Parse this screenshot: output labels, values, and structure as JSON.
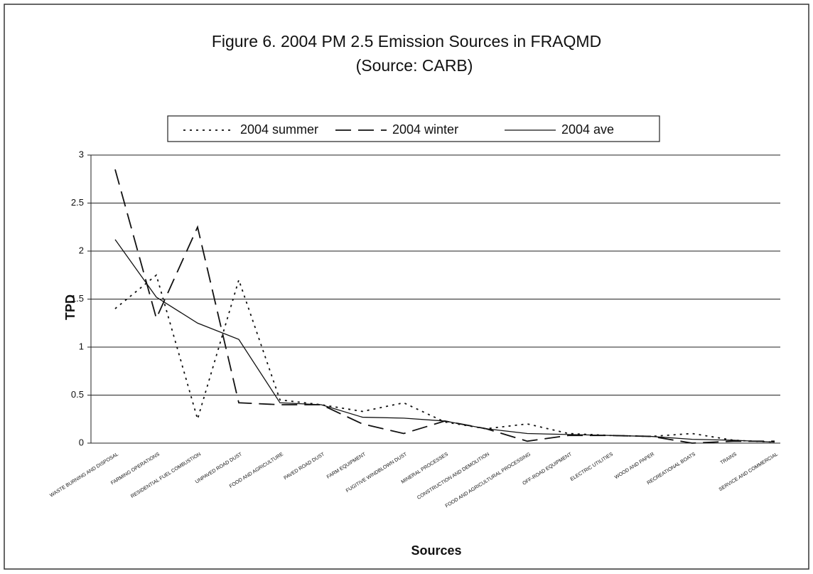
{
  "chart_data": {
    "type": "line",
    "title": "Figure 6.  2004 PM 2.5 Emission Sources in FRAQMD",
    "subtitle": "(Source: CARB)",
    "x_label": "Sources",
    "y_label": "TPD",
    "categories": [
      "WASTE BURNING AND DISPOSAL",
      "FARMING OPERATIONS",
      "RESIDENTIAL FUEL COMBUSTION",
      "UNPAVED ROAD DUST",
      "FOOD AND AGRICULTURE",
      "PAVED ROAD DUST",
      "FARM EQUIPMENT",
      "FUGITIVE WINDBLOWN DUST",
      "MINERAL PROCESSES",
      "CONSTRUCTION AND DEMOLITION",
      "FOOD AND AGRICULTURAL PROCESSING",
      "OFF-ROAD EQUIPMENT",
      "ELECTRIC UTILITIES",
      "WOOD AND PAPER",
      "RECREATIONAL BOATS",
      "TRAINS",
      "SERVICE AND COMMERCIAL"
    ],
    "series": [
      {
        "name": "2004 summer",
        "color": "#111111",
        "dash": "dotted",
        "values": [
          1.4,
          1.75,
          0.25,
          1.7,
          0.45,
          0.4,
          0.33,
          0.42,
          0.22,
          0.15,
          0.2,
          0.1,
          0.08,
          0.07,
          0.1,
          0.03,
          0.01
        ]
      },
      {
        "name": "2004 winter",
        "color": "#111111",
        "dash": "dashed",
        "values": [
          2.85,
          1.3,
          2.25,
          0.42,
          0.4,
          0.4,
          0.2,
          0.1,
          0.23,
          0.15,
          0.02,
          0.08,
          0.08,
          0.07,
          0,
          0.02,
          0.02
        ]
      },
      {
        "name": "2004 ave",
        "color": "#111111",
        "dash": "solid",
        "values": [
          2.12,
          1.52,
          1.25,
          1.08,
          0.42,
          0.4,
          0.27,
          0.26,
          0.23,
          0.15,
          0.1,
          0.09,
          0.08,
          0.07,
          0.04,
          0.03,
          0.01
        ]
      }
    ],
    "ylim": [
      0,
      3
    ],
    "yticks": [
      0,
      0.5,
      1,
      1.5,
      2,
      2.5,
      3
    ],
    "grid": true
  }
}
